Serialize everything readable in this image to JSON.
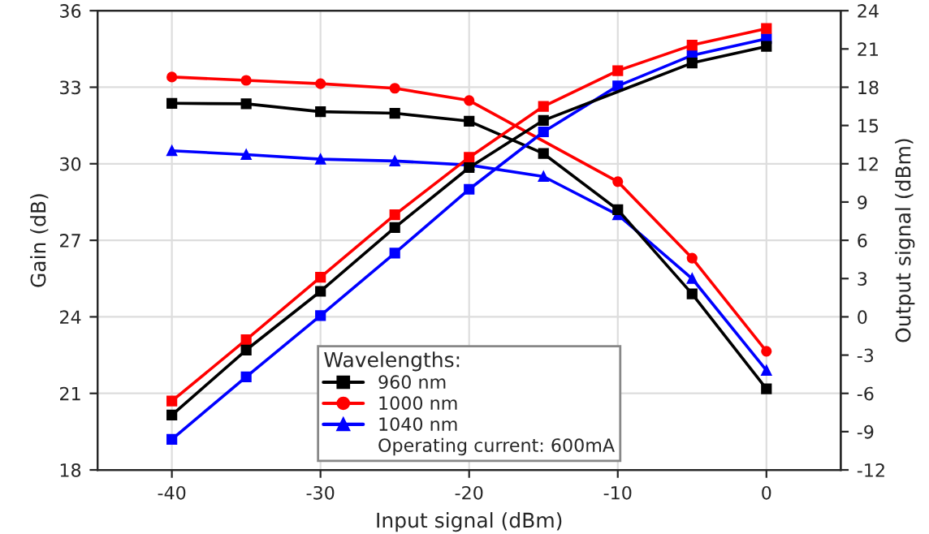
{
  "chart_data": {
    "type": "line",
    "xlabel": "Input signal (dBm)",
    "ylabel": "Gain (dB)",
    "y2label": "Output signal (dBm)",
    "legend_title": "Wavelengths:",
    "x": [
      -40,
      -35,
      -30,
      -25,
      -20,
      -15,
      -10,
      -5,
      0
    ],
    "series": [
      {
        "name": "960 nm",
        "color": "#000000",
        "marker": "square",
        "values": [
          32.37,
          32.35,
          32.04,
          31.98,
          31.67,
          30.4,
          28.2,
          24.9,
          21.18
        ]
      },
      {
        "name": "1000 nm",
        "color": "#ff0000",
        "marker": "circle",
        "values": [
          33.4,
          33.27,
          33.14,
          32.96,
          32.48,
          null,
          29.3,
          26.3,
          22.65
        ]
      },
      {
        "name": "1040 nm",
        "color": "#0000ff",
        "marker": "triangle",
        "values": [
          30.51,
          30.36,
          30.18,
          30.11,
          29.95,
          29.5,
          28.0,
          25.5,
          21.9
        ]
      },
      {
        "color": "#000000",
        "marker": "square",
        "axis": "y2",
        "values": [
          -7.7,
          -2.6,
          2.0,
          7.0,
          11.7,
          15.4,
          null,
          19.9,
          21.2
        ]
      },
      {
        "color": "#ff0000",
        "marker": "square",
        "axis": "y2",
        "values": [
          -6.6,
          -1.8,
          3.1,
          8.0,
          12.5,
          16.5,
          19.3,
          21.3,
          22.6
        ]
      },
      {
        "color": "#0000ff",
        "marker": "square",
        "axis": "y2",
        "values": [
          -9.6,
          -4.7,
          0.1,
          5.0,
          10.0,
          14.5,
          18.1,
          20.5,
          21.8
        ]
      }
    ],
    "annotations": [
      "Operating current: 600mA"
    ],
    "xlim": [
      -45,
      5
    ],
    "xticks": [
      -40,
      -30,
      -20,
      -10,
      0
    ],
    "ylim": [
      18,
      36
    ],
    "yticks": [
      18,
      21,
      24,
      27,
      30,
      33,
      36
    ],
    "y2lim": [
      -12,
      24
    ],
    "y2ticks": [
      -12,
      -9,
      -6,
      -3,
      0,
      3,
      6,
      9,
      12,
      15,
      18,
      21,
      24
    ],
    "grid": true,
    "legend": "bottom",
    "line_style": "solid"
  }
}
